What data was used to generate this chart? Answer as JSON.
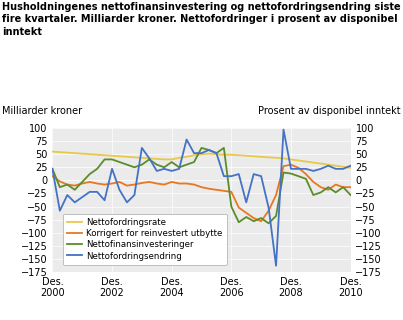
{
  "title_line1": "Husholdningenes nettofinansinvestering og nettofordringsendring siste",
  "title_line2": "fire kvartaler. Milliarder kroner. Nettofordringer i prosent av disponibel",
  "title_line3": "inntekt",
  "ylabel_left": "Milliarder kroner",
  "ylabel_right": "Prosent av disponibel inntekt",
  "xtick_labels": [
    "Des.\n2000",
    "Des.\n2002",
    "Des.\n2004",
    "Des.\n2006",
    "Des.\n2008",
    "Des.\n2010"
  ],
  "xtick_positions": [
    0,
    8,
    16,
    24,
    32,
    40
  ],
  "ylim": [
    -175,
    100
  ],
  "yticks": [
    -175,
    -150,
    -125,
    -100,
    -75,
    -50,
    -25,
    0,
    25,
    50,
    75,
    100
  ],
  "legend_labels": [
    "Nettofordringsrate",
    "Korrigert for reinvestert utbytte",
    "Nettofinansinvesteringer",
    "Nettofordringsendring"
  ],
  "colors": {
    "nettofordringsrate": "#E8C84A",
    "korrigert": "#E87722",
    "nettofinans": "#5B8C2A",
    "nettofordringer": "#4472C4"
  },
  "nettofordringsrate": [
    55,
    54,
    53,
    52,
    51,
    50,
    49,
    48,
    47,
    46,
    45,
    44,
    43,
    42,
    41,
    40,
    40,
    43,
    45,
    48,
    50,
    51,
    50,
    49,
    49,
    48,
    47,
    46,
    45,
    44,
    43,
    42,
    40,
    38,
    36,
    34,
    32,
    30,
    28,
    26,
    24
  ],
  "korrigert": [
    8,
    -2,
    -8,
    -10,
    -6,
    -3,
    -6,
    -8,
    -6,
    -3,
    -10,
    -8,
    -5,
    -3,
    -6,
    -8,
    -3,
    -6,
    -6,
    -8,
    -13,
    -16,
    -18,
    -20,
    -22,
    -52,
    -62,
    -72,
    -78,
    -58,
    -28,
    27,
    30,
    24,
    12,
    -3,
    -13,
    -18,
    -8,
    -13,
    -13
  ],
  "nettofinans": [
    22,
    -13,
    -8,
    -18,
    -3,
    12,
    22,
    40,
    40,
    35,
    30,
    25,
    30,
    40,
    30,
    25,
    35,
    25,
    30,
    35,
    62,
    58,
    52,
    62,
    -50,
    -80,
    -70,
    -78,
    -72,
    -82,
    -68,
    15,
    13,
    8,
    3,
    -28,
    -23,
    -13,
    -23,
    -13,
    -28
  ],
  "nettofordringer": [
    22,
    -58,
    -28,
    -42,
    -32,
    -22,
    -22,
    -38,
    22,
    -18,
    -42,
    -28,
    62,
    42,
    18,
    22,
    18,
    22,
    78,
    52,
    52,
    58,
    52,
    8,
    8,
    12,
    -42,
    12,
    8,
    -52,
    -163,
    97,
    22,
    22,
    22,
    18,
    22,
    28,
    22,
    22,
    28
  ]
}
